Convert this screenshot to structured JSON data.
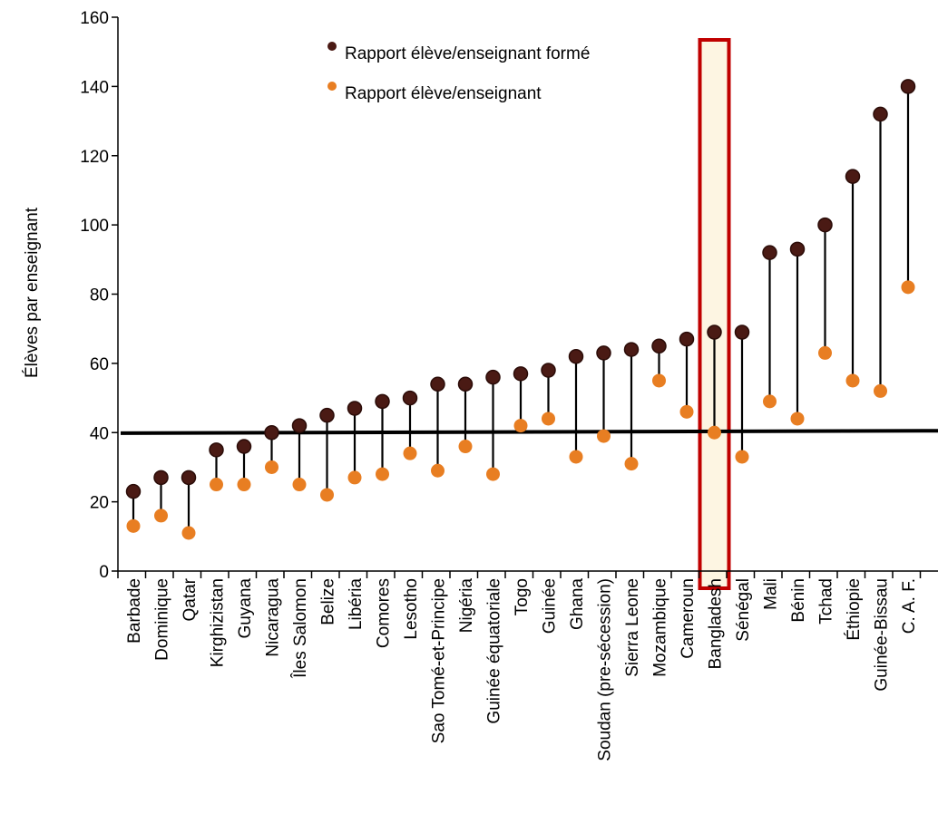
{
  "chart_data": {
    "type": "dot-range",
    "ylabel": "Élèves par enseignant",
    "ylim": [
      0,
      160
    ],
    "yticks": [
      0,
      20,
      40,
      60,
      80,
      100,
      120,
      140,
      160
    ],
    "categories": [
      "Barbade",
      "Dominique",
      "Qatar",
      "Kirghizistan",
      "Guyana",
      "Nicaragua",
      "Îles Salomon",
      "Belize",
      "Libéria",
      "Comores",
      "Lesotho",
      "Sao Tomé-et-Principe",
      "Nigéria",
      "Guinée équatoriale",
      "Togo",
      "Guinée",
      "Ghana",
      "Soudan (pre-sécession)",
      "Sierra Leone",
      "Mozambique",
      "Cameroun",
      "Bangladesh",
      "Sénégal",
      "Mali",
      "Bénin",
      "Tchad",
      "Éthiopie",
      "Guinée-Bissau",
      "C. A. F."
    ],
    "series": [
      {
        "name": "Rapport élève/enseignant formé",
        "color": "#4a1a14",
        "values": [
          23,
          27,
          27,
          35,
          36,
          40,
          42,
          45,
          47,
          49,
          50,
          54,
          54,
          56,
          57,
          58,
          62,
          63,
          64,
          65,
          67,
          69,
          69,
          92,
          93,
          100,
          114,
          132,
          140
        ]
      },
      {
        "name": "Rapport élève/enseignant",
        "color": "#e87e22",
        "values": [
          13,
          16,
          11,
          25,
          25,
          30,
          25,
          22,
          27,
          28,
          34,
          29,
          36,
          28,
          42,
          44,
          33,
          39,
          31,
          55,
          46,
          40,
          33,
          49,
          44,
          63,
          55,
          52,
          82
        ]
      }
    ],
    "reference_line": 40,
    "highlight": "Bangladesh",
    "colors": {
      "highlight_border": "#c00000",
      "highlight_fill": "#fdf5e2",
      "reference_line": "#000000"
    }
  }
}
